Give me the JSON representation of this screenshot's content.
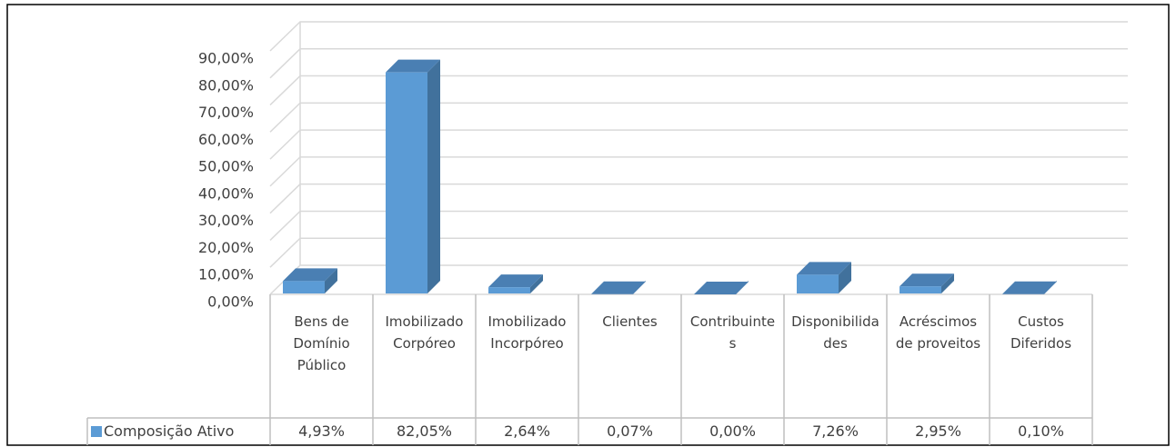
{
  "chart_data": {
    "type": "bar3d",
    "categories": [
      "Bens de Domínio Público",
      "Imobilizado Corpóreo",
      "Imobilizado Incorpóreo",
      "Clientes",
      "Contribuintes",
      "Disponibilidades",
      "Acréscimos de proveitos",
      "Custos Diferidos"
    ],
    "series": [
      {
        "name": "Composição Ativo",
        "color": "#5b9bd5",
        "values": [
          4.93,
          82.05,
          2.64,
          0.07,
          0,
          7.26,
          2.95,
          0.1
        ],
        "value_labels": [
          "4,93%",
          "82,05%",
          "2,64%",
          "0,07%",
          "0,00%",
          "7,26%",
          "2,95%",
          "0,10%"
        ]
      }
    ],
    "ylim": [
      0,
      90
    ],
    "yticks": [
      {
        "value": 0,
        "label": "0,00%"
      },
      {
        "value": 10,
        "label": "10,00%"
      },
      {
        "value": 20,
        "label": "20,00%"
      },
      {
        "value": 30,
        "label": "30,00%"
      },
      {
        "value": 40,
        "label": "40,00%"
      },
      {
        "value": 50,
        "label": "50,00%"
      },
      {
        "value": 60,
        "label": "60,00%"
      },
      {
        "value": 70,
        "label": "70,00%"
      },
      {
        "value": 80,
        "label": "80,00%"
      },
      {
        "value": 90,
        "label": "90,00%"
      }
    ],
    "grid": true
  }
}
